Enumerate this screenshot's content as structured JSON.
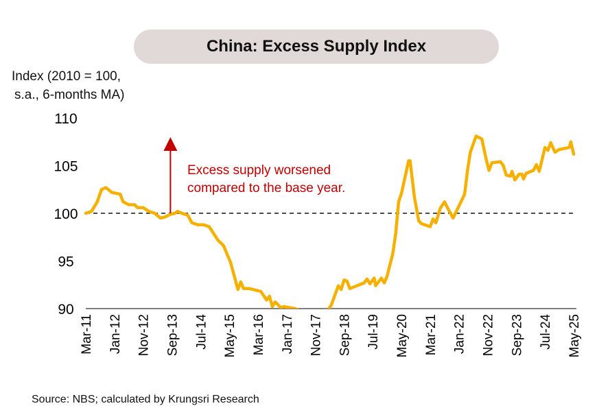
{
  "chart_data": {
    "type": "line",
    "title": "China: Excess Supply Index",
    "ylabel_lines": [
      "Index (2010 = 100,",
      "s.a., 6-months MA)"
    ],
    "xlabel": "",
    "ylim": [
      90,
      110
    ],
    "yticks": [
      "90",
      "95",
      "100",
      "105",
      "110"
    ],
    "ytick_values": [
      90,
      95,
      100,
      105,
      110
    ],
    "x_unit": "months since Mar-11",
    "xlim": [
      0,
      170
    ],
    "xticks": [
      "Mar-11",
      "Jan-12",
      "Nov-12",
      "Sep-13",
      "Jul-14",
      "May-15",
      "Mar-16",
      "Jan-17",
      "Nov-17",
      "Sep-18",
      "Jul-19",
      "May-20",
      "Mar-21",
      "Jan-22",
      "Nov-22",
      "Sep-23",
      "Jul-24",
      "May-25"
    ],
    "xtick_values": [
      0,
      10,
      20,
      30,
      40,
      50,
      60,
      70,
      80,
      90,
      100,
      110,
      120,
      130,
      140,
      150,
      160,
      170
    ],
    "reference_line": {
      "value": 100,
      "style": "dashed"
    },
    "series": [
      {
        "name": "Excess Supply Index",
        "color": "#f5b000",
        "x": [
          0,
          2,
          4,
          5.5,
          7,
          9,
          12,
          13,
          15,
          17,
          18,
          20,
          22,
          24,
          26,
          27.5,
          29.5,
          31,
          32,
          33.5,
          35.5,
          37,
          39,
          41,
          43,
          46,
          48,
          50.5,
          53,
          54,
          55,
          57,
          61,
          63,
          64,
          65,
          66,
          68,
          69,
          73,
          76,
          80,
          84.5,
          85.6,
          88,
          89,
          90,
          91,
          92,
          97,
          98,
          99,
          100.5,
          101,
          103,
          104,
          105,
          107,
          108,
          109,
          110,
          112.5,
          113,
          114.5,
          116,
          117,
          120,
          121,
          122,
          123.5,
          125,
          126,
          128,
          132,
          133,
          134,
          136,
          138,
          139.5,
          140.5,
          141.5,
          144.5,
          145.5,
          146.5,
          148,
          148.5,
          149.5,
          151,
          152,
          152.5,
          153.5,
          156,
          157,
          158,
          160,
          161,
          162,
          163.5,
          165,
          168.5,
          169,
          170
        ],
        "values": [
          100.0,
          100.2,
          101.2,
          102.5,
          102.7,
          102.2,
          102.0,
          101.2,
          100.9,
          100.9,
          100.6,
          100.6,
          100.2,
          100.0,
          99.5,
          99.6,
          99.9,
          100.0,
          100.2,
          100.0,
          99.8,
          99.0,
          98.8,
          98.8,
          98.6,
          97.2,
          96.6,
          94.8,
          92.0,
          92.8,
          92.1,
          92.1,
          91.8,
          90.9,
          91.3,
          90.2,
          90.7,
          90.1,
          90.2,
          90.0,
          89.6,
          89.4,
          89.9,
          90.4,
          92.4,
          92.0,
          93.0,
          92.9,
          92.1,
          92.7,
          93.1,
          92.6,
          93.2,
          92.4,
          93.2,
          92.7,
          93.4,
          95.8,
          97.9,
          101.2,
          102.1,
          105.5,
          105.5,
          101.7,
          99.2,
          98.9,
          98.6,
          99.4,
          99.0,
          100.5,
          101.2,
          100.6,
          99.5,
          102.0,
          104.5,
          106.4,
          108.1,
          107.8,
          105.7,
          104.5,
          105.3,
          105.4,
          105.0,
          104.0,
          103.9,
          104.4,
          103.5,
          104.1,
          104.1,
          103.6,
          104.2,
          104.5,
          105.1,
          104.4,
          106.9,
          106.6,
          107.4,
          106.4,
          106.7,
          106.9,
          107.5,
          106.2
        ]
      }
    ],
    "annotation": {
      "lines": [
        "Excess supply worsened",
        "compared to the base year."
      ],
      "color": "#c00000",
      "arrow_direction": "up",
      "arrow_at_x": 29.5
    },
    "grid": false,
    "legend": "none"
  },
  "source": "Source: NBS; calculated by Krungsri Research"
}
